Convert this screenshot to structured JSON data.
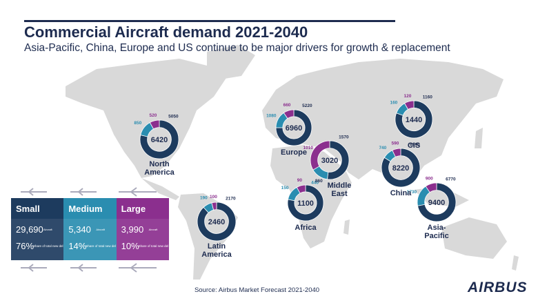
{
  "title": "Commercial Aircraft demand 2021-2040",
  "subtitle": "Asia-Pacific, China, Europe and US continue to be major drivers for growth & replacement",
  "source": "Source: Airbus Market Forecast 2021-2040",
  "logo": "AIRBUS",
  "table": {
    "columns": [
      {
        "name": "Small",
        "color": "#1d3b5e",
        "aircraft": "29,690",
        "aircraft_unit": "Aircraft",
        "share": "76%",
        "share_unit": "Share of total new del"
      },
      {
        "name": "Medium",
        "color": "#2a8db0",
        "aircraft": "5,340",
        "aircraft_unit": "Aircraft",
        "share": "14%",
        "share_unit": "Share of total new del"
      },
      {
        "name": "Large",
        "color": "#8b2f8e",
        "aircraft": "3,990",
        "aircraft_unit": "Aircraft",
        "share": "10%",
        "share_unit": "Share of total new del"
      }
    ]
  },
  "chart_data": [
    {
      "type": "donut",
      "title": "North America",
      "total": 6420,
      "values": [
        5050,
        850,
        520
      ]
    },
    {
      "type": "donut",
      "title": "Europe",
      "total": 6960,
      "values": [
        5220,
        1080,
        660
      ]
    },
    {
      "type": "donut",
      "title": "CIS",
      "total": 1440,
      "values": [
        1160,
        160,
        120
      ]
    },
    {
      "type": "donut",
      "title": "Middle East",
      "total": 3020,
      "values": [
        1570,
        440,
        1010
      ]
    },
    {
      "type": "donut",
      "title": "China",
      "total": 8220,
      "values": [
        6890,
        740,
        590
      ]
    },
    {
      "type": "donut",
      "title": "Africa",
      "total": 1100,
      "values": [
        860,
        150,
        90
      ]
    },
    {
      "type": "donut",
      "title": "Asia-Pacific",
      "total": 9400,
      "values": [
        6770,
        1730,
        900
      ]
    },
    {
      "type": "donut",
      "title": "Latin America",
      "total": 2460,
      "values": [
        2170,
        190,
        100
      ]
    }
  ]
}
